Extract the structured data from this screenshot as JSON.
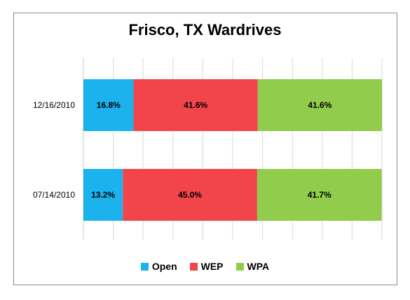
{
  "chart_data": {
    "type": "bar",
    "orientation": "horizontal",
    "stacked": true,
    "title": "Frisco, TX Wardrives",
    "categories": [
      "12/16/2010",
      "07/14/2010"
    ],
    "series": [
      {
        "name": "Open",
        "color": "#1bb2ee",
        "values": [
          16.8,
          13.2
        ],
        "labels": [
          "16.8%",
          "13.2%"
        ]
      },
      {
        "name": "WEP",
        "color": "#f2444b",
        "values": [
          41.6,
          45.0
        ],
        "labels": [
          "41.6%",
          "45.0%"
        ]
      },
      {
        "name": "WPA",
        "color": "#91cc4d",
        "values": [
          41.6,
          41.7
        ],
        "labels": [
          "41.6%",
          "41.7%"
        ]
      }
    ],
    "xlim": [
      0,
      100
    ],
    "grid": true,
    "legend": "bottom"
  }
}
